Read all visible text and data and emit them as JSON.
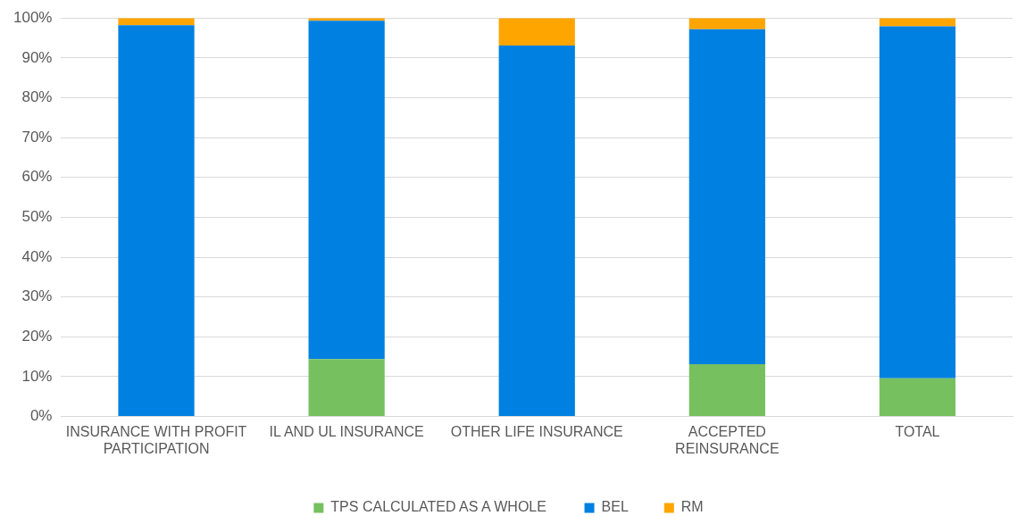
{
  "chart_data": {
    "type": "bar",
    "stacked": true,
    "categories": [
      "INSURANCE WITH PROFIT PARTICIPATION",
      "IL AND UL INSURANCE",
      "OTHER LIFE INSURANCE",
      "ACCEPTED REINSURANCE",
      "TOTAL"
    ],
    "series": [
      {
        "name": "TPS CALCULATED AS A WHOLE",
        "color": "#77c060",
        "values": [
          0,
          14.4,
          0,
          13.1,
          9.6
        ]
      },
      {
        "name": "BEL",
        "color": "#0080e0",
        "values": [
          98.2,
          84.9,
          93.1,
          84.1,
          88.3
        ]
      },
      {
        "name": "RM",
        "color": "#ffa500",
        "values": [
          1.8,
          0.7,
          6.9,
          2.8,
          2.1
        ]
      }
    ],
    "ylim": [
      0,
      100
    ],
    "yticks": [
      {
        "value": 0,
        "label": "0%"
      },
      {
        "value": 10,
        "label": "10%"
      },
      {
        "value": 20,
        "label": "20%"
      },
      {
        "value": 30,
        "label": "30%"
      },
      {
        "value": 40,
        "label": "40%"
      },
      {
        "value": 50,
        "label": "50%"
      },
      {
        "value": 60,
        "label": "60%"
      },
      {
        "value": 70,
        "label": "70%"
      },
      {
        "value": 80,
        "label": "80%"
      },
      {
        "value": 90,
        "label": "90%"
      },
      {
        "value": 100,
        "label": "100%"
      }
    ],
    "grid": "y",
    "legend": "bottom"
  }
}
